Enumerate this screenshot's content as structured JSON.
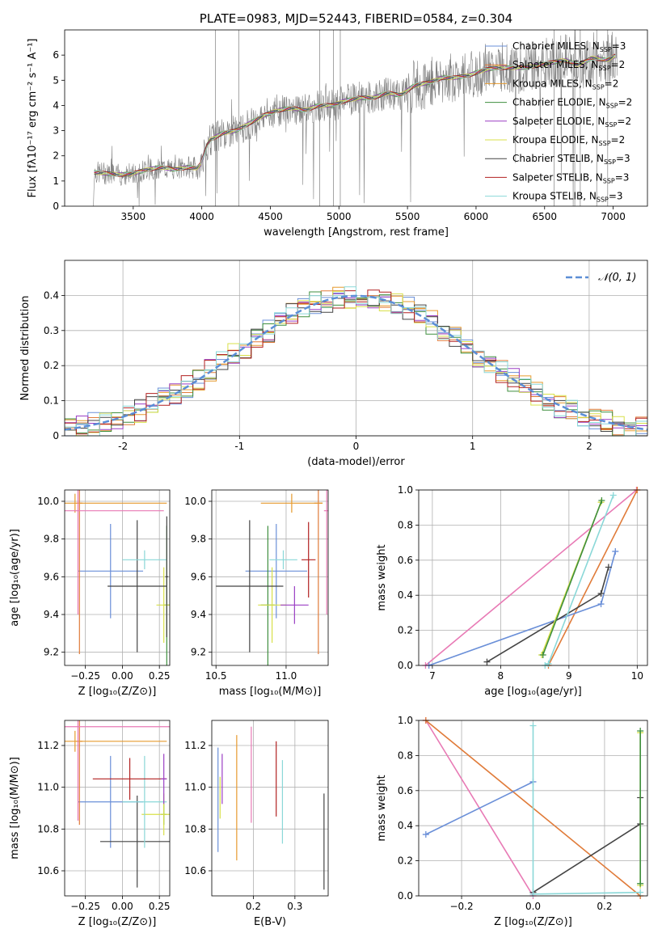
{
  "figure": {
    "background": "#ffffff"
  },
  "colors": {
    "Chabrier MILES": "#6a8fd8",
    "Salpeter MILES": "#e07b39",
    "Kroupa MILES": "#e69a2e",
    "Chabrier ELODIE": "#3f8f3f",
    "Salpeter ELODIE": "#9b3fc4",
    "Kroupa ELODIE": "#d8e04a",
    "Chabrier STELIB": "#444444",
    "Salpeter STELIB": "#b22020",
    "Kroupa STELIB": "#8ad8d8",
    "pink": "#e87ab5",
    "orange": "#e07b39",
    "gauss": "#5b8ed6",
    "data": "#808080"
  },
  "chart_data": [
    {
      "id": "spectrum",
      "type": "line",
      "title": "PLATE=0983, MJD=52443, FIBERID=0584, z=0.304",
      "xlabel": "wavelength [Angstrom, rest frame]",
      "ylabel": "Flux [fλ10⁻¹⁷ erg cm⁻² s⁻¹ A⁻¹]",
      "xlim": [
        3000,
        7250
      ],
      "ylim": [
        0,
        7
      ],
      "xticks": [
        3500,
        4000,
        4500,
        5000,
        5500,
        6000,
        6500,
        7000
      ],
      "yticks": [
        0,
        1,
        2,
        3,
        4,
        5,
        6
      ],
      "legend": {
        "position": "right",
        "entries": [
          {
            "name": "Chabrier MILES",
            "label": "Chabrier MILES, N",
            "sub": "SSP",
            "suffix": "=3"
          },
          {
            "name": "Salpeter MILES",
            "label": "Salpeter MILES, N",
            "sub": "SSP",
            "suffix": "=2"
          },
          {
            "name": "Kroupa MILES",
            "label": "Kroupa MILES, N",
            "sub": "SSP",
            "suffix": "=2"
          },
          {
            "name": "Chabrier ELODIE",
            "label": "Chabrier ELODIE, N",
            "sub": "SSP",
            "suffix": "=2"
          },
          {
            "name": "Salpeter ELODIE",
            "label": "Salpeter ELODIE, N",
            "sub": "SSP",
            "suffix": "=2"
          },
          {
            "name": "Kroupa ELODIE",
            "label": "Kroupa ELODIE, N",
            "sub": "SSP",
            "suffix": "=2"
          },
          {
            "name": "Chabrier STELIB",
            "label": "Chabrier STELIB, N",
            "sub": "SSP",
            "suffix": "=3"
          },
          {
            "name": "Salpeter STELIB",
            "label": "Salpeter STELIB, N",
            "sub": "SSP",
            "suffix": "=3"
          },
          {
            "name": "Kroupa STELIB",
            "label": "Kroupa STELIB, N",
            "sub": "SSP",
            "suffix": "=3"
          }
        ]
      },
      "continuum": [
        [
          3210,
          0.0
        ],
        [
          3215,
          1.35
        ],
        [
          3300,
          1.3
        ],
        [
          3400,
          1.25
        ],
        [
          3500,
          1.3
        ],
        [
          3600,
          1.45
        ],
        [
          3700,
          1.55
        ],
        [
          3800,
          1.45
        ],
        [
          3900,
          1.55
        ],
        [
          3980,
          1.5
        ],
        [
          4050,
          2.6
        ],
        [
          4150,
          2.9
        ],
        [
          4250,
          3.0
        ],
        [
          4350,
          3.3
        ],
        [
          4450,
          3.6
        ],
        [
          4550,
          3.8
        ],
        [
          4650,
          3.9
        ],
        [
          4750,
          3.8
        ],
        [
          4850,
          4.0
        ],
        [
          4950,
          4.0
        ],
        [
          5050,
          4.2
        ],
        [
          5150,
          4.3
        ],
        [
          5250,
          4.3
        ],
        [
          5350,
          4.5
        ],
        [
          5450,
          4.4
        ],
        [
          5550,
          4.8
        ],
        [
          5650,
          4.9
        ],
        [
          5750,
          5.1
        ],
        [
          5850,
          5.1
        ],
        [
          5950,
          5.2
        ],
        [
          6050,
          5.4
        ],
        [
          6150,
          5.5
        ],
        [
          6250,
          5.5
        ],
        [
          6350,
          5.5
        ],
        [
          6450,
          5.6
        ],
        [
          6550,
          5.7
        ],
        [
          6650,
          5.8
        ],
        [
          6750,
          5.6
        ],
        [
          6850,
          5.9
        ],
        [
          6950,
          5.8
        ],
        [
          7030,
          6.0
        ]
      ]
    },
    {
      "id": "residuals",
      "type": "histogram",
      "xlabel": "(data-model)/error",
      "ylabel": "Normed distribution",
      "xlim": [
        -2.5,
        2.5
      ],
      "ylim": [
        0,
        0.5
      ],
      "xticks": [
        -2,
        -1,
        0,
        1,
        2
      ],
      "yticks": [
        0.0,
        0.1,
        0.2,
        0.3,
        0.4
      ],
      "legend": {
        "position": "top-right",
        "label": "𝒩(0, 1)"
      },
      "gauss": {
        "mu": 0,
        "sigma": 1
      }
    },
    {
      "id": "age-Z",
      "type": "errorbar",
      "xlabel": "Z [log₁₀(Z/Z⊙)]",
      "ylabel": "age  [log₁₀(age/yr)]",
      "xlim": [
        -0.39,
        0.32
      ],
      "ylim": [
        9.13,
        10.06
      ],
      "xticks": [
        -0.25,
        0.0,
        0.25
      ],
      "xticklabels": [
        "−0.25",
        "0.00",
        "0.25"
      ],
      "yticks": [
        9.2,
        9.4,
        9.6,
        9.8,
        10.0
      ],
      "yticklabels": [
        "9.2",
        "9.4",
        "9.6",
        "9.8",
        "10.0"
      ],
      "points": [
        {
          "model": "Chabrier MILES",
          "x": -0.08,
          "xerr": 0.22,
          "y": 9.63,
          "yerr": 0.25
        },
        {
          "model": "Salpeter MILES",
          "x": -0.29,
          "xerr": 0.02,
          "y": 9.99,
          "yerr": 0.8
        },
        {
          "model": "Kroupa MILES",
          "x": -0.32,
          "xerr": 0.62,
          "y": 9.99,
          "yerr": 0.05
        },
        {
          "model": "Chabrier ELODIE",
          "x": 0.3,
          "xerr": 0.02,
          "y": 9.45,
          "yerr": 0.42
        },
        {
          "model": "Kroupa ELODIE",
          "x": 0.28,
          "xerr": 0.05,
          "y": 9.45,
          "yerr": 0.2
        },
        {
          "model": "Chabrier STELIB",
          "x": 0.1,
          "xerr": 0.2,
          "y": 9.55,
          "yerr": 0.35
        },
        {
          "model": "Kroupa STELIB",
          "x": 0.15,
          "xerr": 0.15,
          "y": 9.69,
          "yerr": 0.05
        },
        {
          "model": "pink",
          "x": -0.3,
          "xerr": 0.58,
          "y": 9.95,
          "yerr": 0.55
        },
        {
          "model": "Chabrier STELIB",
          "x": 0.3,
          "xerr": 0.01,
          "y": 9.6,
          "yerr": 0.32
        }
      ]
    },
    {
      "id": "age-mass",
      "type": "errorbar",
      "xlabel": "mass [log₁₀(M/M⊙)]",
      "ylabel": "",
      "xlim": [
        10.47,
        11.3
      ],
      "ylim": [
        9.13,
        10.06
      ],
      "xticks": [
        10.5,
        11.0
      ],
      "xticklabels": [
        "10.5",
        "11.0"
      ],
      "yticks": [
        9.2,
        9.4,
        9.6,
        9.8,
        10.0
      ],
      "yticklabels": [
        "9.2",
        "9.4",
        "9.6",
        "9.8",
        "10.0"
      ],
      "points": [
        {
          "model": "Chabrier MILES",
          "x": 10.93,
          "xerr": 0.22,
          "y": 9.63,
          "yerr": 0.25
        },
        {
          "model": "Salpeter MILES",
          "x": 11.23,
          "xerr": 0.03,
          "y": 9.99,
          "yerr": 0.8
        },
        {
          "model": "Kroupa MILES",
          "x": 11.04,
          "xerr": 0.22,
          "y": 9.99,
          "yerr": 0.05
        },
        {
          "model": "Chabrier ELODIE",
          "x": 10.87,
          "xerr": 0.05,
          "y": 9.45,
          "yerr": 0.42
        },
        {
          "model": "Kroupa ELODIE",
          "x": 10.9,
          "xerr": 0.1,
          "y": 9.45,
          "yerr": 0.2
        },
        {
          "model": "Chabrier STELIB",
          "x": 10.74,
          "xerr": 0.24,
          "y": 9.55,
          "yerr": 0.35
        },
        {
          "model": "Kroupa STELIB",
          "x": 10.98,
          "xerr": 0.1,
          "y": 9.69,
          "yerr": 0.05
        },
        {
          "model": "pink",
          "x": 11.29,
          "xerr": 0.02,
          "y": 9.95,
          "yerr": 0.55
        },
        {
          "model": "Salpeter STELIB",
          "x": 11.16,
          "xerr": 0.05,
          "y": 9.69,
          "yerr": 0.2
        },
        {
          "model": "Salpeter ELODIE",
          "x": 11.06,
          "xerr": 0.1,
          "y": 9.45,
          "yerr": 0.1
        }
      ]
    },
    {
      "id": "mass-weight-age",
      "type": "line",
      "xlabel": "age  [log₁₀(age/yr)]",
      "ylabel": "mass weight",
      "xlim": [
        6.8,
        10.15
      ],
      "ylim": [
        0,
        1
      ],
      "xticks": [
        7,
        8,
        9,
        10
      ],
      "xticklabels": [
        "7",
        "8",
        "9",
        "10"
      ],
      "yticks": [
        0.0,
        0.2,
        0.4,
        0.6,
        0.8,
        1.0
      ],
      "yticklabels": [
        "0.0",
        "0.2",
        "0.4",
        "0.6",
        "0.8",
        "1.0"
      ],
      "series": [
        {
          "model": "pink",
          "x": [
            6.9,
            9.99
          ],
          "y": [
            0.0,
            1.0
          ]
        },
        {
          "model": "orange",
          "x": [
            8.7,
            10.0
          ],
          "y": [
            0.0,
            1.0
          ]
        },
        {
          "model": "Chabrier MILES",
          "x": [
            6.95,
            9.47,
            9.68
          ],
          "y": [
            0.0,
            0.35,
            0.65
          ]
        },
        {
          "model": "Chabrier STELIB",
          "x": [
            7.8,
            9.47,
            9.58
          ],
          "y": [
            0.02,
            0.41,
            0.56
          ]
        },
        {
          "model": "Kroupa ELODIE",
          "x": [
            8.6,
            9.47
          ],
          "y": [
            0.06,
            0.93
          ]
        },
        {
          "model": "Chabrier ELODIE",
          "x": [
            8.62,
            9.48
          ],
          "y": [
            0.06,
            0.94
          ]
        },
        {
          "model": "Kroupa STELIB",
          "x": [
            8.65,
            8.7,
            9.65
          ],
          "y": [
            0.0,
            0.01,
            0.97
          ]
        }
      ]
    },
    {
      "id": "mass-Z",
      "type": "errorbar",
      "xlabel": "Z [log₁₀(Z/Z⊙)]",
      "ylabel": "mass [log₁₀(M/M⊙)]",
      "xlim": [
        -0.39,
        0.32
      ],
      "ylim": [
        10.48,
        11.32
      ],
      "xticks": [
        -0.25,
        0.0,
        0.25
      ],
      "xticklabels": [
        "−0.25",
        "0.00",
        "0.25"
      ],
      "yticks": [
        10.6,
        10.8,
        11.0,
        11.2
      ],
      "yticklabels": [
        "10.6",
        "10.8",
        "11.0",
        "11.2"
      ],
      "points": [
        {
          "model": "Chabrier MILES",
          "x": -0.08,
          "xerr": 0.22,
          "y": 10.93,
          "yerr": 0.22
        },
        {
          "model": "Salpeter MILES",
          "x": -0.29,
          "xerr": 0.02,
          "y": 11.22,
          "yerr": 0.4
        },
        {
          "model": "Kroupa MILES",
          "x": -0.32,
          "xerr": 0.62,
          "y": 11.22,
          "yerr": 0.05
        },
        {
          "model": "pink",
          "x": -0.3,
          "xerr": 0.62,
          "y": 11.29,
          "yerr": 0.45
        },
        {
          "model": "Chabrier ELODIE",
          "x": 0.28,
          "xerr": 0.02,
          "y": 10.87,
          "yerr": 0.05
        },
        {
          "model": "Kroupa ELODIE",
          "x": 0.28,
          "xerr": 0.15,
          "y": 10.87,
          "yerr": 0.1
        },
        {
          "model": "Chabrier STELIB",
          "x": 0.1,
          "xerr": 0.25,
          "y": 10.74,
          "yerr": 0.22
        },
        {
          "model": "Kroupa STELIB",
          "x": 0.15,
          "xerr": 0.15,
          "y": 10.93,
          "yerr": 0.22
        },
        {
          "model": "Salpeter STELIB",
          "x": 0.05,
          "xerr": 0.25,
          "y": 11.04,
          "yerr": 0.1
        },
        {
          "model": "Salpeter ELODIE",
          "x": 0.28,
          "xerr": 0.02,
          "y": 11.04,
          "yerr": 0.12
        }
      ]
    },
    {
      "id": "mass-ebv",
      "type": "errorbar",
      "xlabel": "E(B-V)",
      "ylabel": "",
      "xlim": [
        0.1,
        0.38
      ],
      "ylim": [
        10.48,
        11.32
      ],
      "xticks": [
        0.2,
        0.3
      ],
      "xticklabels": [
        "0.2",
        "0.3"
      ],
      "yticks": [
        10.6,
        10.8,
        11.0,
        11.2
      ],
      "yticklabels": [
        "10.6",
        "10.8",
        "11.0",
        "11.2"
      ],
      "points": [
        {
          "model": "Chabrier MILES",
          "x": 0.115,
          "xerr": 0.0,
          "y": 10.94,
          "yerr": 0.25
        },
        {
          "model": "Kroupa ELODIE",
          "x": 0.12,
          "xerr": 0.0,
          "y": 10.95,
          "yerr": 0.1
        },
        {
          "model": "Salpeter ELODIE",
          "x": 0.125,
          "xerr": 0.0,
          "y": 11.04,
          "yerr": 0.12
        },
        {
          "model": "Kroupa MILES",
          "x": 0.16,
          "xerr": 0.0,
          "y": 10.95,
          "yerr": 0.3
        },
        {
          "model": "pink",
          "x": 0.195,
          "xerr": 0.0,
          "y": 11.06,
          "yerr": 0.23
        },
        {
          "model": "Salpeter STELIB",
          "x": 0.255,
          "xerr": 0.0,
          "y": 11.04,
          "yerr": 0.18
        },
        {
          "model": "Kroupa STELIB",
          "x": 0.27,
          "xerr": 0.0,
          "y": 10.93,
          "yerr": 0.2
        },
        {
          "model": "Chabrier STELIB",
          "x": 0.37,
          "xerr": 0.0,
          "y": 10.74,
          "yerr": 0.23
        }
      ]
    },
    {
      "id": "mass-weight-Z",
      "type": "line",
      "xlabel": "Z [log₁₀(Z/Z⊙)]",
      "ylabel": "mass weight",
      "xlim": [
        -0.32,
        0.32
      ],
      "ylim": [
        0,
        1
      ],
      "xticks": [
        -0.2,
        0.0,
        0.2
      ],
      "xticklabels": [
        "−0.2",
        "0.0",
        "0.2"
      ],
      "yticks": [
        0.0,
        0.2,
        0.4,
        0.6,
        0.8,
        1.0
      ],
      "yticklabels": [
        "0.0",
        "0.2",
        "0.4",
        "0.6",
        "0.8",
        "1.0"
      ],
      "series": [
        {
          "model": "pink",
          "x": [
            -0.3,
            0.0
          ],
          "y": [
            1.0,
            0.0
          ]
        },
        {
          "model": "orange",
          "x": [
            -0.3,
            0.3
          ],
          "y": [
            1.0,
            0.0
          ]
        },
        {
          "model": "Chabrier MILES",
          "x": [
            -0.3,
            0.0
          ],
          "y": [
            0.35,
            0.65
          ]
        },
        {
          "model": "Chabrier STELIB",
          "x": [
            0.0,
            0.3,
            0.3
          ],
          "y": [
            0.02,
            0.41,
            0.56
          ]
        },
        {
          "model": "Kroupa STELIB",
          "x": [
            0.0,
            0.0,
            0.3
          ],
          "y": [
            0.97,
            0.01,
            0.02
          ]
        },
        {
          "model": "Kroupa ELODIE",
          "x": [
            0.3,
            0.3
          ],
          "y": [
            0.06,
            0.93
          ]
        },
        {
          "model": "Chabrier ELODIE",
          "x": [
            0.3,
            0.3
          ],
          "y": [
            0.07,
            0.94
          ]
        }
      ]
    }
  ]
}
